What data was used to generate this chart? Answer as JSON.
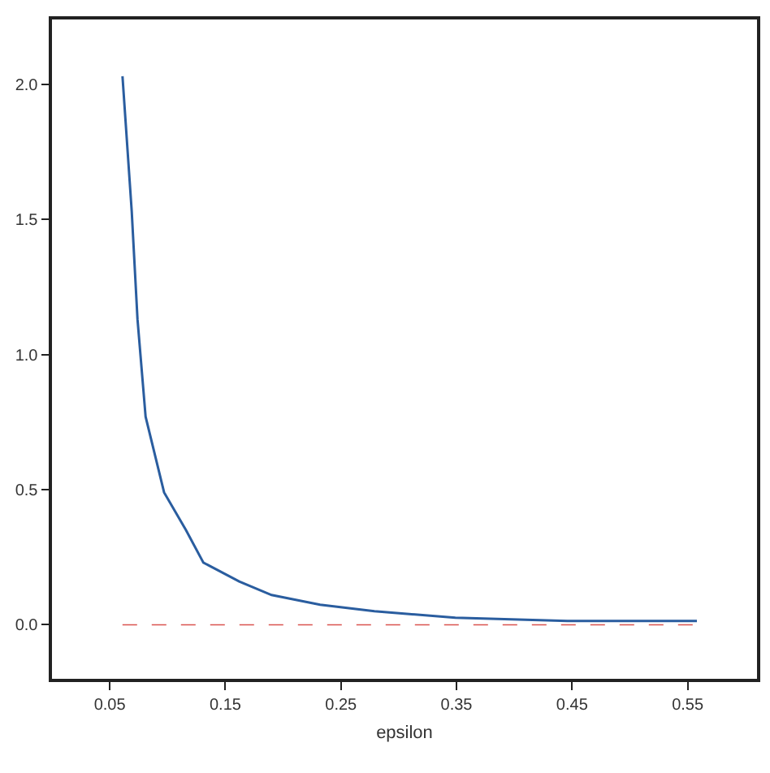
{
  "chart_data": {
    "type": "line",
    "xlabel": "epsilon",
    "xlim": [
      0.0,
      0.61
    ],
    "xticks": [
      0.05,
      0.15,
      0.25,
      0.35,
      0.45,
      0.55
    ],
    "ylim": [
      -0.2,
      2.24
    ],
    "yticks": [
      {
        "value": 0,
        "label": "0.0"
      },
      0.5,
      {
        "value": 1,
        "label": "1.0"
      },
      1.5,
      {
        "value": 2,
        "label": "2.0"
      }
    ],
    "series": [
      {
        "color": "#2a5d9f",
        "line_style": "solid",
        "x": [
          0.061,
          0.069,
          0.074,
          0.081,
          0.097,
          0.116,
          0.131,
          0.162,
          0.19,
          0.232,
          0.279,
          0.349,
          0.446,
          0.558
        ],
        "values": [
          2.03,
          1.53,
          1.13,
          0.77,
          0.49,
          0.35,
          0.23,
          0.16,
          0.11,
          0.074,
          0.05,
          0.026,
          0.014,
          0.014
        ]
      },
      {
        "color": "#d9534f",
        "line_style": "dashed",
        "x": [
          0.061,
          0.558
        ],
        "values": [
          0,
          0
        ]
      }
    ]
  }
}
